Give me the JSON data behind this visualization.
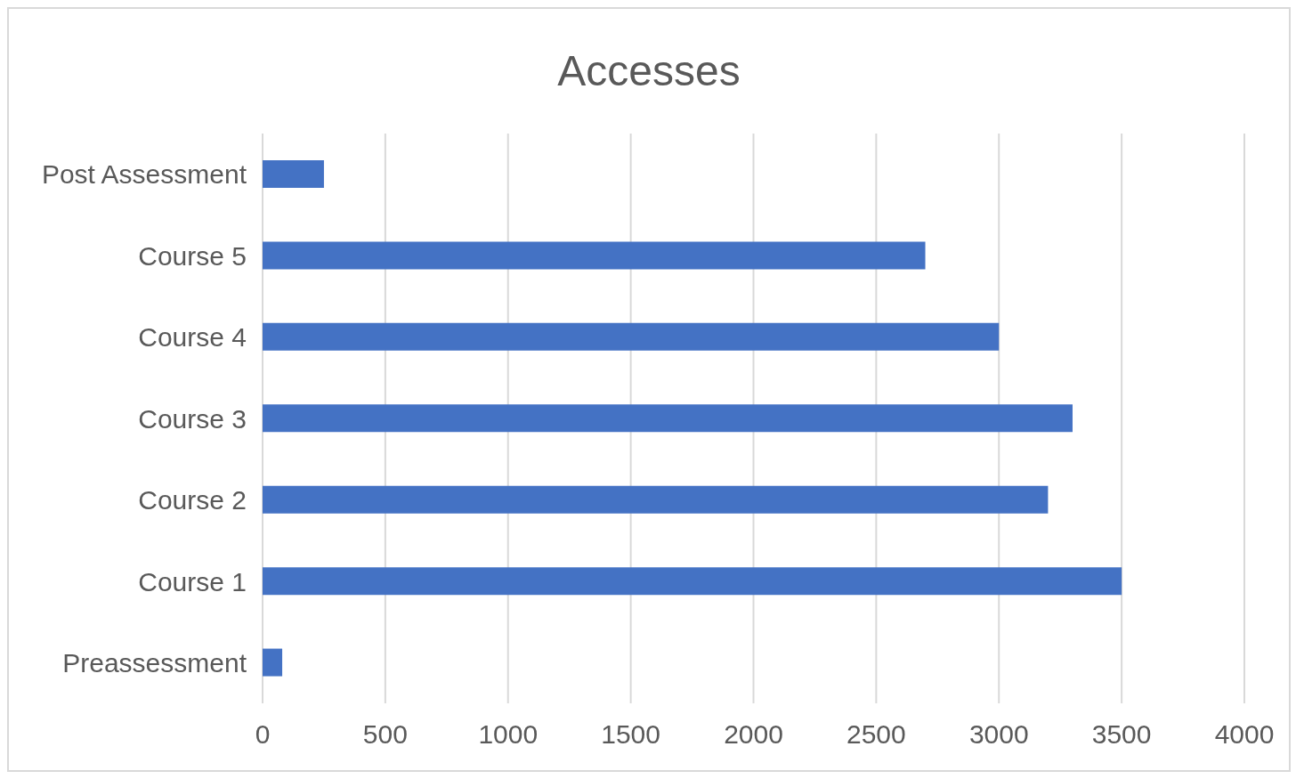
{
  "chart_data": {
    "type": "bar",
    "title": "Accesses",
    "orientation": "horizontal",
    "categories": [
      "Post Assessment",
      "Course 5",
      "Course 4",
      "Course 3",
      "Course 2",
      "Course 1",
      "Preassessment"
    ],
    "values": [
      250,
      2700,
      3000,
      3300,
      3200,
      3500,
      80
    ],
    "color": "#4472c4",
    "xlim": [
      0,
      4000
    ],
    "xticks": [
      0,
      500,
      1000,
      1500,
      2000,
      2500,
      3000,
      3500,
      4000
    ],
    "grid": "x",
    "legend": false
  }
}
